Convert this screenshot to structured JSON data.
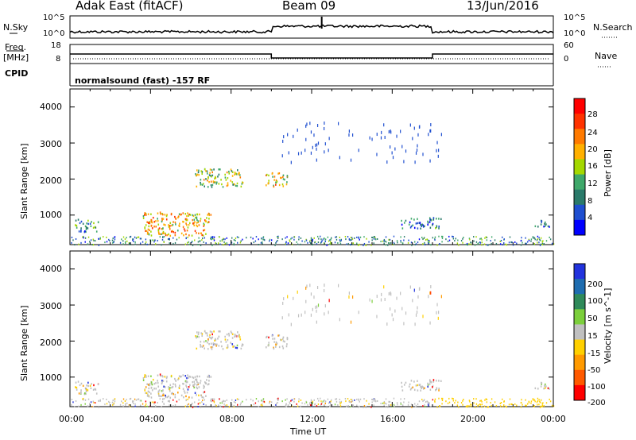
{
  "header": {
    "radar": "Adak East (fitACF)",
    "beam": "Beam 09",
    "date": "13/Jun/2016"
  },
  "strips": {
    "nsky_label": "N.Sky",
    "nsearch_label": "N.Search",
    "nsky_ticks": [
      "10^5",
      "10^0"
    ],
    "nsearch_ticks": [
      "10^5",
      "10^0"
    ],
    "freq_label": "Freq.",
    "freq_unit": "[MHz]",
    "freq_ticks": [
      "18",
      "8"
    ],
    "nave_label": "Nave",
    "nave_ticks": [
      "60",
      "0"
    ],
    "cpid_label": "CPID",
    "cpid_text": "normalsound (fast) -157 RF"
  },
  "power_panel": {
    "ylabel": "Slant Range [km]",
    "yticks": [
      "4000",
      "3000",
      "2000",
      "1000"
    ],
    "colorbar_label": "Power [dB]",
    "colorbar_ticks": [
      "28",
      "24",
      "20",
      "16",
      "12",
      "8",
      "4"
    ],
    "colors": [
      "#ff0000",
      "#ff3300",
      "#ff7a00",
      "#ffb000",
      "#a4d800",
      "#3fa86a",
      "#2a7a6a",
      "#1f4fd0",
      "#0000ff"
    ]
  },
  "velocity_panel": {
    "ylabel": "Slant Range [km]",
    "yticks": [
      "4000",
      "3000",
      "2000",
      "1000"
    ],
    "colorbar_label": "Velocity [m s^-1]",
    "colorbar_ticks": [
      "200",
      "100",
      "50",
      "15",
      "-15",
      "-50",
      "-100",
      "-200"
    ],
    "colors": [
      "#2233dd",
      "#1f6db0",
      "#2f8a5a",
      "#7ccf3c",
      "#c0c0c0",
      "#ffd000",
      "#ff9a00",
      "#ff5a00",
      "#ff0000"
    ]
  },
  "xaxis": {
    "ticks": [
      "00:00",
      "04:00",
      "08:00",
      "12:00",
      "16:00",
      "20:00",
      "00:00"
    ],
    "label": "Time UT"
  },
  "chart_data": {
    "type": "heatmap",
    "title": "Adak East (fitACF) Beam 09 13/Jun/2016",
    "x_range_hours": [
      0,
      24
    ],
    "y_range_km": [
      180,
      4500
    ],
    "frequency_mhz": [
      {
        "start_h": 0,
        "end_h": 10,
        "value": 13
      },
      {
        "start_h": 10,
        "end_h": 18,
        "value": 10.5
      },
      {
        "start_h": 18,
        "end_h": 24,
        "value": 13
      }
    ],
    "scatter_regions": [
      {
        "t_start": 0.2,
        "t_end": 1.4,
        "r_start": 550,
        "r_end": 900,
        "power_db": 8
      },
      {
        "t_start": 3.6,
        "t_end": 7.0,
        "r_start": 450,
        "r_end": 1100,
        "power_db": 18
      },
      {
        "t_start": 6.2,
        "t_end": 8.6,
        "r_start": 1800,
        "r_end": 2300,
        "power_db": 14
      },
      {
        "t_start": 9.7,
        "t_end": 10.8,
        "r_start": 1800,
        "r_end": 2200,
        "power_db": 16
      },
      {
        "t_start": 16.4,
        "t_end": 18.4,
        "r_start": 650,
        "r_end": 950,
        "power_db": 6
      },
      {
        "t_start": 23.0,
        "t_end": 23.8,
        "r_start": 700,
        "r_end": 900,
        "power_db": 6
      }
    ]
  }
}
